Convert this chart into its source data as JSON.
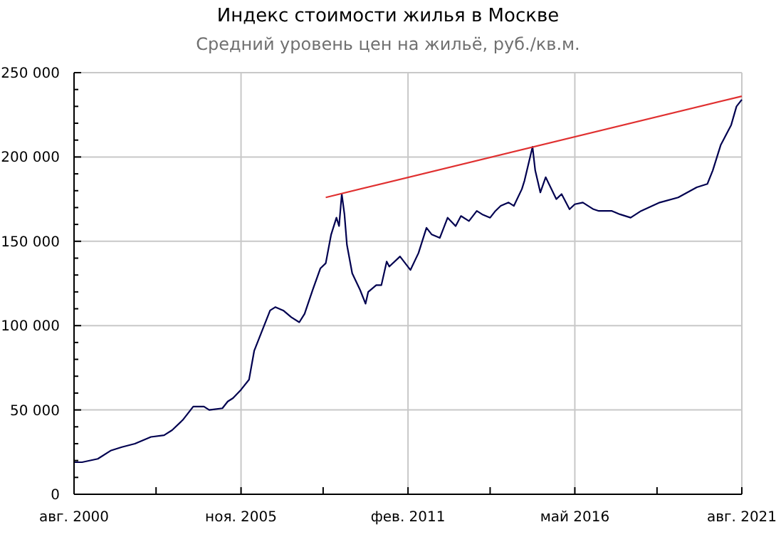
{
  "chart_data": {
    "type": "line",
    "title": "Индекс стоимости жилья в Москве",
    "subtitle": "Средний уровень цен на жильё, руб./кв.м.",
    "xlim": [
      "2000-08",
      "2021-08"
    ],
    "xticks": [
      {
        "value": "2000-08",
        "label": "авг. 2000"
      },
      {
        "value": "2003-03",
        "label": null
      },
      {
        "value": "2005-11",
        "label": "ноя. 2005"
      },
      {
        "value": "2008-06",
        "label": null
      },
      {
        "value": "2011-02",
        "label": "фев. 2011"
      },
      {
        "value": "2013-09",
        "label": null
      },
      {
        "value": "2016-05",
        "label": "май 2016"
      },
      {
        "value": "2018-12",
        "label": null
      },
      {
        "value": "2021-08",
        "label": "авг. 2021"
      }
    ],
    "ylim": [
      0,
      250000
    ],
    "yticks": [
      {
        "value": 0,
        "label": "0"
      },
      {
        "value": 10000,
        "label": null
      },
      {
        "value": 20000,
        "label": null
      },
      {
        "value": 30000,
        "label": null
      },
      {
        "value": 40000,
        "label": null
      },
      {
        "value": 50000,
        "label": "50 000"
      },
      {
        "value": 60000,
        "label": null
      },
      {
        "value": 70000,
        "label": null
      },
      {
        "value": 80000,
        "label": null
      },
      {
        "value": 90000,
        "label": null
      },
      {
        "value": 100000,
        "label": "100 000"
      },
      {
        "value": 110000,
        "label": null
      },
      {
        "value": 120000,
        "label": null
      },
      {
        "value": 130000,
        "label": null
      },
      {
        "value": 140000,
        "label": null
      },
      {
        "value": 150000,
        "label": "150 000"
      },
      {
        "value": 160000,
        "label": null
      },
      {
        "value": 170000,
        "label": null
      },
      {
        "value": 180000,
        "label": null
      },
      {
        "value": 190000,
        "label": null
      },
      {
        "value": 200000,
        "label": "200 000"
      },
      {
        "value": 210000,
        "label": null
      },
      {
        "value": 220000,
        "label": null
      },
      {
        "value": 230000,
        "label": null
      },
      {
        "value": 240000,
        "label": null
      },
      {
        "value": 250000,
        "label": "250 000"
      }
    ],
    "grid": true,
    "marker": "none",
    "line_style": "solid",
    "series": [
      {
        "color": "#000050",
        "x": [
          "2000-08",
          "2000-11",
          "2001-05",
          "2001-10",
          "2002-02",
          "2002-07",
          "2003-01",
          "2003-06",
          "2003-09",
          "2004-01",
          "2004-05",
          "2004-09",
          "2004-11",
          "2005-04",
          "2005-06",
          "2005-08",
          "2005-11",
          "2006-02",
          "2006-04",
          "2006-07",
          "2006-10",
          "2006-12",
          "2007-03",
          "2007-06",
          "2007-09",
          "2007-11",
          "2008-02",
          "2008-05",
          "2008-07",
          "2008-09",
          "2008-11",
          "2008-12",
          "2009-01",
          "2009-02",
          "2009-03",
          "2009-05",
          "2009-08",
          "2009-10",
          "2009-11",
          "2010-02",
          "2010-04",
          "2010-06",
          "2010-07",
          "2010-11",
          "2011-03",
          "2011-06",
          "2011-09",
          "2011-11",
          "2012-02",
          "2012-05",
          "2012-08",
          "2012-10",
          "2013-01",
          "2013-04",
          "2013-06",
          "2013-09",
          "2013-11",
          "2014-01",
          "2014-04",
          "2014-06",
          "2014-09",
          "2014-10",
          "2015-01",
          "2015-02",
          "2015-04",
          "2015-06",
          "2015-10",
          "2015-12",
          "2016-03",
          "2016-05",
          "2016-08",
          "2016-12",
          "2017-02",
          "2017-07",
          "2017-10",
          "2018-02",
          "2018-06",
          "2019-01",
          "2019-08",
          "2020-03",
          "2020-07",
          "2020-09",
          "2020-12",
          "2021-04",
          "2021-06",
          "2021-08"
        ],
        "values": [
          19000,
          19000,
          21000,
          26000,
          28000,
          30000,
          34000,
          35000,
          38000,
          44000,
          52000,
          52000,
          50000,
          51000,
          55000,
          57000,
          62000,
          68000,
          85000,
          97000,
          109000,
          111000,
          109000,
          105000,
          102000,
          107000,
          121000,
          134000,
          137000,
          154000,
          164000,
          159000,
          178000,
          166000,
          148000,
          131000,
          121000,
          113000,
          120000,
          124000,
          124000,
          138000,
          135000,
          141000,
          133000,
          143000,
          158000,
          154000,
          152000,
          164000,
          159000,
          165000,
          162000,
          168000,
          166000,
          164000,
          168000,
          171000,
          173000,
          171000,
          181000,
          186000,
          206000,
          192000,
          179000,
          188000,
          175000,
          178000,
          169000,
          172000,
          173000,
          169000,
          168000,
          168000,
          166000,
          164000,
          168000,
          173000,
          176000,
          182000,
          184000,
          192000,
          207000,
          219000,
          230000,
          234000
        ]
      },
      {
        "color": "#e03030",
        "x": [
          "2008-07",
          "2021-08"
        ],
        "values": [
          176000,
          236000
        ]
      }
    ]
  }
}
